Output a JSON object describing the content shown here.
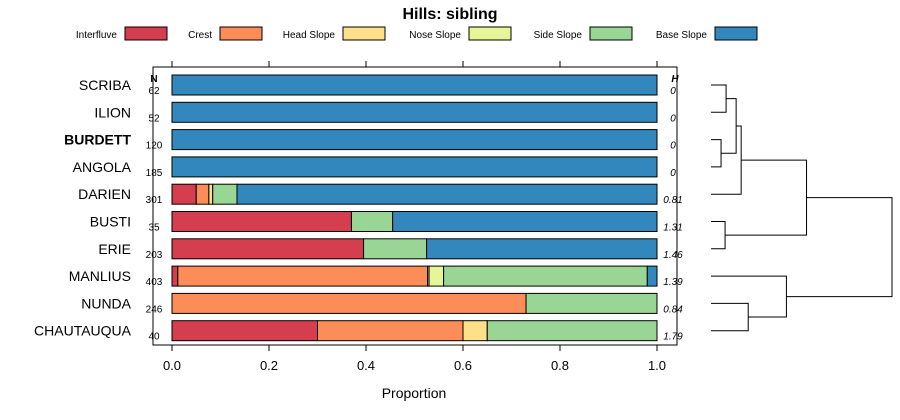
{
  "chart_data": {
    "type": "bar",
    "stacked": true,
    "orientation": "horizontal",
    "title": "Hills: sibling",
    "xlabel": "Proportion",
    "ylabel": "",
    "xlim": [
      0,
      1
    ],
    "xticks": [
      "0.0",
      "0.2",
      "0.4",
      "0.6",
      "0.8",
      "1.0"
    ],
    "xtick_values": [
      0,
      0.2,
      0.4,
      0.6,
      0.8,
      1.0
    ],
    "n_header": "N",
    "h_header": "H",
    "highlighted_category": "BURDETT",
    "legend_position": "top",
    "categories": [
      "SCRIBA",
      "ILION",
      "BURDETT",
      "ANGOLA",
      "DARIEN",
      "BUSTI",
      "ERIE",
      "MANLIUS",
      "NUNDA",
      "CHAUTAUQUA"
    ],
    "n_values": [
      "62",
      "52",
      "120",
      "185",
      "301",
      "35",
      "203",
      "403",
      "246",
      "40"
    ],
    "h_values": [
      "0",
      "0",
      "0",
      "0",
      "0.81",
      "1.31",
      "1.46",
      "1.39",
      "0.84",
      "1.79"
    ],
    "series": [
      {
        "name": "Interfluve",
        "color": "#d53e4f",
        "values": [
          0,
          0,
          0,
          0,
          0.05,
          0.37,
          0.395,
          0.012,
          0,
          0.3
        ]
      },
      {
        "name": "Crest",
        "color": "#fc8d59",
        "values": [
          0,
          0,
          0,
          0,
          0.026,
          0,
          0,
          0.515,
          0.73,
          0.3
        ]
      },
      {
        "name": "Head Slope",
        "color": "#fee08b",
        "values": [
          0,
          0,
          0,
          0,
          0.008,
          0,
          0,
          0.003,
          0,
          0.05
        ]
      },
      {
        "name": "Nose Slope",
        "color": "#e6f598",
        "values": [
          0,
          0,
          0,
          0,
          0,
          0,
          0,
          0.03,
          0,
          0
        ]
      },
      {
        "name": "Side Slope",
        "color": "#99d594",
        "values": [
          0,
          0,
          0,
          0,
          0.05,
          0.085,
          0.13,
          0.42,
          0.27,
          0.35
        ]
      },
      {
        "name": "Base Slope",
        "color": "#3288bd",
        "values": [
          1,
          1,
          1,
          1,
          0.866,
          0.545,
          0.475,
          0.02,
          0,
          0
        ]
      }
    ],
    "dendrogram": {
      "leaf_order": [
        "SCRIBA",
        "ILION",
        "BURDETT",
        "ANGOLA",
        "DARIEN",
        "BUSTI",
        "ERIE",
        "MANLIUS",
        "NUNDA",
        "CHAUTAUQUA"
      ],
      "merges": [
        {
          "a": "SCRIBA",
          "b": "ILION",
          "height": 0.15
        },
        {
          "a": "BURDETT",
          "b": "ANGOLA",
          "height": 0.1
        },
        {
          "a": 0,
          "b": 1,
          "height": 0.25
        },
        {
          "a": 2,
          "b": "DARIEN",
          "height": 0.3
        },
        {
          "a": "BUSTI",
          "b": "ERIE",
          "height": 0.14
        },
        {
          "a": "NUNDA",
          "b": "CHAUTAUQUA",
          "height": 0.37
        },
        {
          "a": "MANLIUS",
          "b": 5,
          "height": 0.75
        },
        {
          "a": 3,
          "b": 4,
          "height": 0.95
        },
        {
          "a": 7,
          "b": 6,
          "height": 1.8
        }
      ]
    }
  }
}
